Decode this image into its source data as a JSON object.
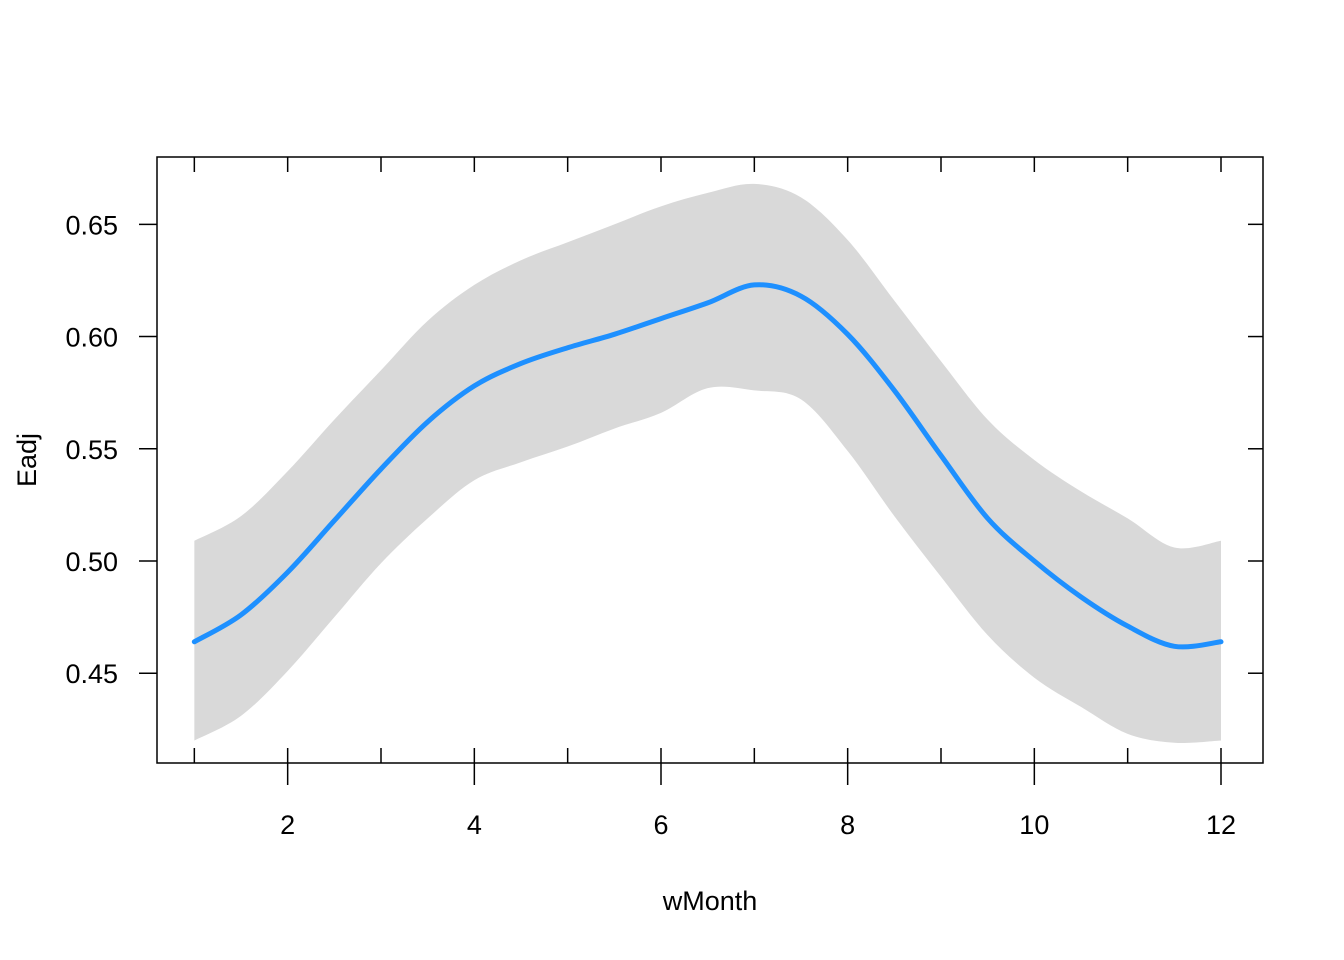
{
  "chart_data": {
    "type": "line",
    "title": "",
    "xlabel": "wMonth",
    "ylabel": "Eadj",
    "xlim": [
      0.6,
      12.45
    ],
    "ylim": [
      0.41,
      0.68
    ],
    "x_ticks": [
      2,
      4,
      6,
      8,
      10,
      12
    ],
    "x_tick_labels": [
      "2",
      "4",
      "6",
      "8",
      "10",
      "12"
    ],
    "x_minor_ticks": [
      1,
      2,
      3,
      4,
      5,
      6,
      7,
      8,
      9,
      10,
      11,
      12
    ],
    "y_ticks": [
      0.45,
      0.5,
      0.55,
      0.6,
      0.65
    ],
    "y_tick_labels": [
      "0.45",
      "0.50",
      "0.55",
      "0.60",
      "0.65"
    ],
    "grid": false,
    "colors": {
      "line": "#1e90ff",
      "band": "#d9d9d9",
      "axes": "#000000"
    },
    "series": [
      {
        "x": [
          1,
          1.5,
          2,
          2.5,
          3,
          3.5,
          4,
          4.5,
          5,
          5.5,
          6,
          6.5,
          7,
          7.5,
          8,
          8.5,
          9,
          9.5,
          10,
          10.5,
          11,
          11.5,
          12
        ],
        "y": [
          0.464,
          0.476,
          0.495,
          0.518,
          0.541,
          0.562,
          0.578,
          0.588,
          0.595,
          0.601,
          0.608,
          0.615,
          0.623,
          0.618,
          0.601,
          0.576,
          0.547,
          0.519,
          0.5,
          0.484,
          0.471,
          0.462,
          0.464
        ],
        "lower": [
          0.42,
          0.431,
          0.451,
          0.475,
          0.499,
          0.519,
          0.536,
          0.544,
          0.551,
          0.559,
          0.566,
          0.577,
          0.576,
          0.572,
          0.549,
          0.52,
          0.493,
          0.467,
          0.448,
          0.435,
          0.423,
          0.419,
          0.42
        ],
        "upper": [
          0.509,
          0.52,
          0.54,
          0.563,
          0.585,
          0.607,
          0.623,
          0.634,
          0.642,
          0.65,
          0.658,
          0.664,
          0.668,
          0.662,
          0.643,
          0.616,
          0.589,
          0.563,
          0.545,
          0.531,
          0.519,
          0.506,
          0.509
        ]
      }
    ]
  }
}
